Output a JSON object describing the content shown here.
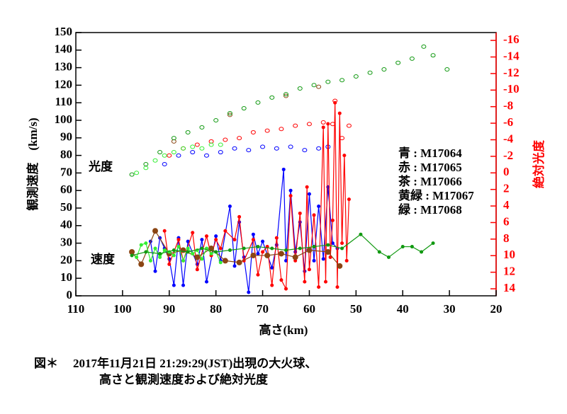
{
  "chart_data": {
    "type": "line",
    "xlabel": "高さ(km)",
    "ylabel": "観測速度　(km/s)",
    "y2label": "絶対光度",
    "xlim": [
      110,
      20
    ],
    "xticks": [
      110,
      100,
      90,
      80,
      70,
      60,
      50,
      40,
      30,
      20
    ],
    "ylim": [
      0,
      150
    ],
    "yticks": [
      0,
      10,
      20,
      30,
      40,
      50,
      60,
      70,
      80,
      90,
      100,
      110,
      120,
      130,
      140,
      150
    ],
    "y2lim": [
      14.85,
      -16.95
    ],
    "y2ticks": [
      14,
      12,
      10,
      8,
      6,
      4,
      2,
      0,
      -2,
      -4,
      -6,
      -8,
      -10,
      -12,
      -14,
      -16
    ],
    "y2color": "#ff0000",
    "annotations": [
      "光度",
      "速度"
    ],
    "series": [
      {
        "name": "青 : M17064",
        "color": "#0000ff",
        "x": [
          94,
          93,
          92,
          91,
          90,
          89,
          88,
          87,
          86,
          84,
          83,
          82,
          80,
          79,
          77,
          76,
          75,
          74,
          73,
          72,
          71,
          70,
          68,
          67,
          65.5,
          65,
          64,
          63,
          62,
          61,
          60,
          59,
          58,
          57,
          56,
          55,
          54
        ],
        "values": [
          31,
          14,
          33,
          27,
          21,
          6,
          33,
          6,
          31,
          18,
          32,
          8,
          34,
          20,
          51,
          17,
          42,
          22,
          2,
          35,
          24,
          31,
          16,
          29,
          72,
          20,
          60,
          25,
          42,
          14,
          58,
          20,
          51,
          21,
          62,
          30,
          27
        ],
        "magnitude_x": [
          91,
          88,
          85,
          82,
          79,
          76,
          73,
          70,
          67,
          64,
          61,
          58,
          56
        ],
        "magnitude": [
          -1.05,
          -2.1,
          -2.5,
          -2.1,
          -2.5,
          -2.95,
          -2.75,
          -3.15,
          -2.95,
          -3.15,
          -2.75,
          -2.95,
          -3.15
        ]
      },
      {
        "name": "赤 : M17065",
        "color": "#ff0000",
        "x": [
          91,
          90,
          88,
          87,
          85,
          84,
          82,
          81,
          80,
          79,
          78,
          76,
          75,
          74,
          72,
          71,
          70,
          69,
          68,
          67,
          66,
          65,
          64,
          63,
          62,
          61,
          60.5,
          60,
          59,
          58,
          57,
          56.5,
          56,
          55.5,
          55,
          54.5,
          54,
          53.5,
          53,
          52.5,
          52,
          51.5
        ],
        "values": [
          37,
          18,
          32,
          20,
          36,
          15,
          34,
          23,
          32,
          27,
          37,
          32,
          45,
          20,
          32,
          12,
          25,
          28,
          6,
          33,
          9,
          4,
          57,
          20,
          47,
          8,
          62,
          15,
          46,
          5,
          96,
          8,
          98,
          22,
          43,
          110,
          5,
          104,
          30,
          80,
          20,
          55
        ],
        "magnitude_x": [
          90,
          87,
          84,
          81,
          78,
          75,
          72,
          69,
          66,
          63,
          60,
          57,
          55,
          54.5,
          53,
          51.5
        ],
        "magnitude": [
          -2.1,
          -2.95,
          -3.4,
          -3.8,
          -4.0,
          -4.2,
          -4.9,
          -5.1,
          -5.3,
          -5.7,
          -5.9,
          -6.1,
          -5.9,
          -8.7,
          -4.2,
          -5.7
        ]
      },
      {
        "name": "茶 : M17066",
        "color": "#8b4513",
        "x": [
          98,
          96,
          93,
          90,
          87,
          84,
          81,
          78,
          75,
          72,
          69,
          66,
          63,
          60,
          56,
          53.5
        ],
        "values": [
          25,
          18,
          37,
          24,
          26,
          22,
          27,
          20,
          19,
          23,
          23,
          24,
          22,
          26,
          25,
          17
        ],
        "magnitude_x": [
          89,
          77,
          65,
          58
        ],
        "magnitude": [
          -3.8,
          -7.0,
          -9.3,
          -10.4
        ]
      },
      {
        "name": "黄緑 : M17067",
        "color": "#33ee33",
        "x": [
          97,
          96,
          95,
          94,
          93,
          92,
          91,
          90,
          89,
          88,
          87,
          86,
          85,
          84,
          83,
          82,
          81,
          80,
          79
        ],
        "values": [
          22,
          29,
          30,
          20,
          27,
          22,
          26,
          25,
          23,
          28,
          20,
          27,
          24,
          26,
          21,
          27,
          24,
          25,
          19
        ],
        "magnitude_x": [
          97,
          95,
          93,
          91,
          89,
          87,
          85,
          83,
          81,
          79
        ],
        "magnitude": [
          0.0,
          -0.6,
          -1.5,
          -2.1,
          -2.5,
          -2.95,
          -3.15,
          -2.95,
          -3.4,
          -3.4
        ]
      },
      {
        "name": "緑 : M17068",
        "color": "#119911",
        "x": [
          98,
          95,
          92,
          89,
          86,
          83,
          80,
          77,
          74,
          71,
          68,
          65,
          62,
          59,
          56,
          53,
          49,
          45,
          43,
          40,
          38,
          36,
          33.5
        ],
        "values": [
          23,
          25,
          24,
          26,
          25,
          27,
          25,
          26,
          27,
          28,
          27,
          26,
          27,
          28,
          29,
          27,
          35,
          25,
          22,
          28,
          28,
          25,
          30
        ],
        "magnitude_x": [
          98,
          95,
          92,
          89,
          86,
          83,
          80,
          77,
          74,
          71,
          68,
          65,
          62,
          59,
          56,
          53,
          50,
          47,
          44,
          41,
          38,
          35.5,
          33.5,
          30.5
        ],
        "magnitude": [
          0.2,
          -1.05,
          -2.5,
          -4.2,
          -4.9,
          -5.5,
          -6.35,
          -7.2,
          -7.8,
          -8.5,
          -9.1,
          -9.5,
          -10.2,
          -10.6,
          -11.0,
          -11.2,
          -11.65,
          -12.1,
          -12.5,
          -13.3,
          -13.8,
          -15.25,
          -14.2,
          -12.5
        ]
      }
    ]
  },
  "caption": {
    "label": "図＊",
    "lines": [
      "2017年11月21日 21:29:29(JST)出現の大火球、",
      "高さと観測速度および絶対光度"
    ]
  }
}
